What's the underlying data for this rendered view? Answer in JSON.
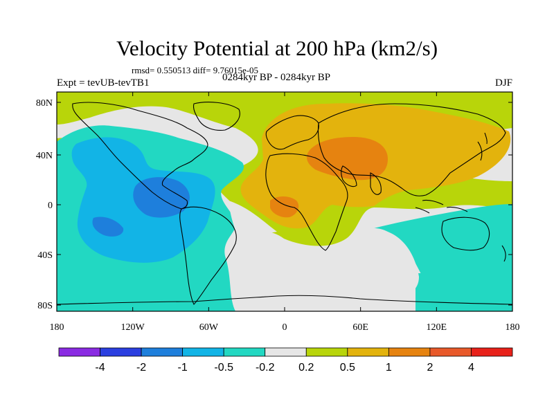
{
  "header": {
    "title": "Velocity Potential at 200 hPa (km2/s)",
    "stats": "rmsd= 0.550513 diff= 9.76015e-05",
    "left_label": "Expt = tevUB-tevTB1",
    "center_label": "0284kyr BP - 0284kyr BP",
    "right_label": "DJF"
  },
  "axes": {
    "y_ticks": [
      "80N",
      "40N",
      "0",
      "40S",
      "80S"
    ],
    "x_ticks": [
      "180",
      "120W",
      "60W",
      "0",
      "60E",
      "120E",
      "180"
    ]
  },
  "colorbar": {
    "labels": [
      "-4",
      "-2",
      "-1",
      "-0.5",
      "-0.2",
      "0.2",
      "0.5",
      "1",
      "2",
      "4"
    ],
    "colors": [
      "#8a2be2",
      "#2b3fe0",
      "#1e7fdc",
      "#12b4e6",
      "#22d8c2",
      "#e6e6e6",
      "#b8d50a",
      "#e3b30d",
      "#e68310",
      "#e8592a",
      "#e8211a"
    ]
  },
  "colors": {
    "background_field": "#e6e6e6",
    "positive_weak": "#b8d50a",
    "positive_mid": "#e3b30d",
    "positive_strong": "#e68310",
    "negative_weak": "#22d8c2",
    "negative_mid": "#12b4e6",
    "negative_strong": "#1e7fdc"
  }
}
